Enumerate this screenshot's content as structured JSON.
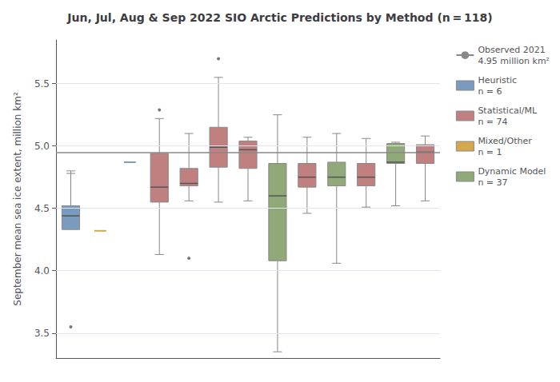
{
  "chart_data": {
    "type": "boxplot",
    "title": "Jun, Jul, Aug & Sep 2022 SIO Arctic Predictions by Method (n = 118)",
    "ylabel": "September mean sea ice extent, million km²",
    "categories": [
      null,
      null,
      null,
      null,
      null,
      null,
      null,
      null,
      null,
      null,
      null,
      null,
      null
    ],
    "series": [
      {
        "name": "Observed 2021\n4.95 million km²",
        "type": "hline",
        "color": "#888888",
        "value": 4.95
      },
      {
        "name": "Heuristic\nn = 6",
        "type": "boxplot",
        "color": "#7a9bbf",
        "values": [
          {
            "whislo": 4.78,
            "q1": 4.33,
            "med": 4.44,
            "q3": 4.52,
            "whishi": 4.8,
            "fliers": [
              3.55
            ]
          },
          null,
          4.87,
          null,
          null,
          null,
          null,
          null,
          null,
          null,
          null,
          null,
          null
        ]
      },
      {
        "name": "Statistical/ML\nn = 74",
        "type": "boxplot",
        "color": "#c08080",
        "values": [
          null,
          null,
          null,
          {
            "whislo": 4.13,
            "q1": 4.55,
            "med": 4.67,
            "q3": 4.94,
            "whishi": 5.22,
            "fliers": [
              5.29
            ]
          },
          {
            "whislo": 4.56,
            "q1": 4.68,
            "med": 4.7,
            "q3": 4.82,
            "whishi": 5.1,
            "fliers": [
              4.1
            ]
          },
          {
            "whislo": 4.55,
            "q1": 4.83,
            "med": 4.99,
            "q3": 5.15,
            "whishi": 5.55,
            "fliers": [
              5.7
            ]
          },
          {
            "whislo": 4.56,
            "q1": 4.82,
            "med": 4.97,
            "q3": 5.04,
            "whishi": 5.07,
            "fliers": []
          },
          null,
          {
            "whislo": 4.46,
            "q1": 4.67,
            "med": 4.75,
            "q3": 4.86,
            "whishi": 5.07,
            "fliers": []
          },
          null,
          {
            "whislo": 4.51,
            "q1": 4.68,
            "med": 4.75,
            "q3": 4.86,
            "whishi": 5.06,
            "fliers": []
          },
          null,
          {
            "whislo": 4.56,
            "q1": 4.86,
            "med": 4.95,
            "q3": 5.01,
            "whishi": 5.08,
            "fliers": []
          }
        ]
      },
      {
        "name": "Mixed/Other\nn = 1",
        "type": "boxplot",
        "color": "#d4a84b",
        "values": [
          null,
          4.32,
          null,
          null,
          null,
          null,
          null,
          null,
          null,
          null,
          null,
          null,
          null
        ]
      },
      {
        "name": "Dynamic Model\nn = 37",
        "type": "boxplot",
        "color": "#8faa78",
        "values": [
          null,
          null,
          null,
          null,
          null,
          null,
          null,
          {
            "whislo": 3.35,
            "q1": 4.08,
            "med": 4.6,
            "q3": 4.86,
            "whishi": 5.25,
            "fliers": []
          },
          null,
          {
            "whislo": 4.06,
            "q1": 4.68,
            "med": 4.75,
            "q3": 4.87,
            "whishi": 5.1,
            "fliers": []
          },
          null,
          {
            "whislo": 4.52,
            "q1": 4.86,
            "med": 4.87,
            "q3": 5.02,
            "whishi": 5.03,
            "fliers": []
          },
          null
        ]
      }
    ],
    "ylim": [
      3.3,
      5.85
    ],
    "yticks": [
      3.5,
      {
        "value": 4,
        "label": "4.0"
      },
      4.5,
      {
        "value": 5,
        "label": "5.0"
      },
      5.5
    ],
    "grid": true,
    "legend": "upper right",
    "tick_labels": "y"
  }
}
